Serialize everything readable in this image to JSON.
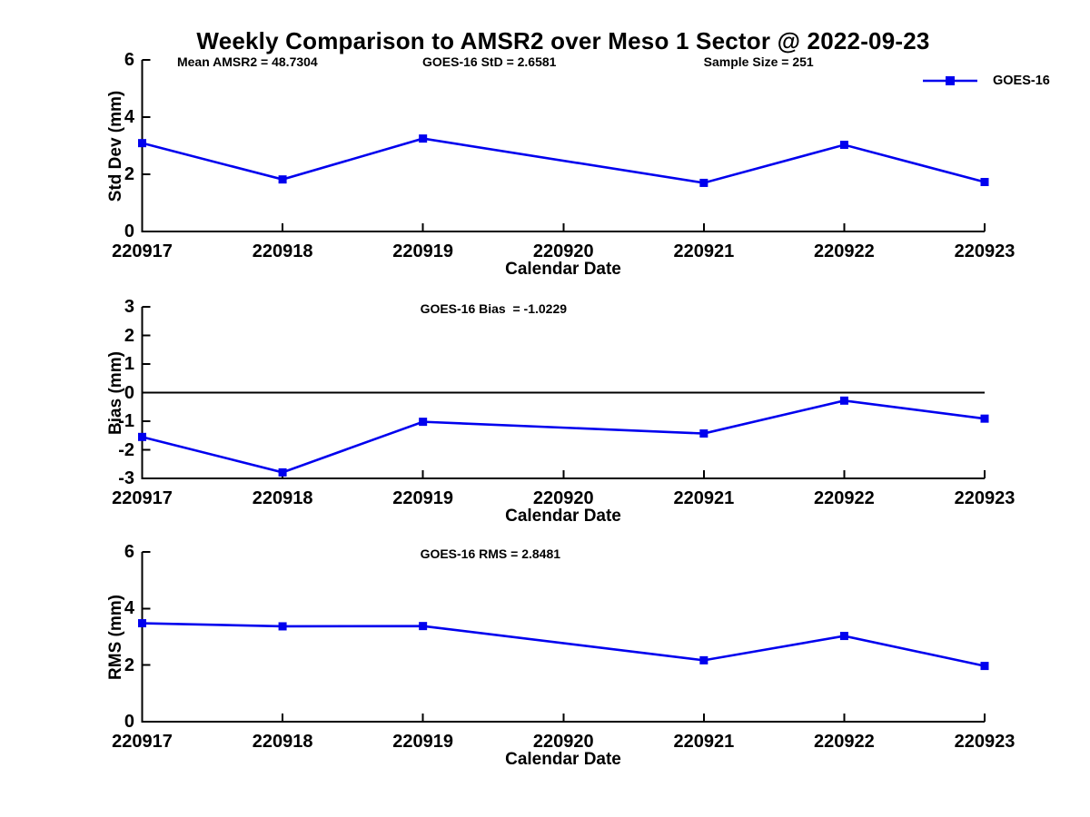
{
  "title": "Weekly Comparison to AMSR2 over Meso 1 Sector @ 2022-09-23",
  "legend": {
    "series_label": "GOES-16",
    "line_color": "#0000EE"
  },
  "colors": {
    "series_blue": "#0000EE",
    "axis_black": "#000000",
    "background": "#ffffff"
  },
  "chart_data": [
    {
      "type": "line",
      "id": "std-dev",
      "xlabel": "Calendar Date",
      "ylabel": "Std Dev (mm)",
      "x_categories": [
        "220917",
        "220918",
        "220919",
        "220920",
        "220921",
        "220922",
        "220923"
      ],
      "ylim": [
        0,
        6
      ],
      "yticks": [
        0,
        2,
        4,
        6
      ],
      "grid": false,
      "zero_line": false,
      "annotations": [
        "Mean AMSR2 = 48.7304",
        "GOES-16 StD = 2.6581",
        "Sample Size = 251"
      ],
      "series": [
        {
          "name": "GOES-16",
          "color": "#0000EE",
          "marker": "square",
          "values": [
            3.09,
            1.82,
            3.25,
            null,
            1.7,
            3.03,
            1.73
          ]
        }
      ]
    },
    {
      "type": "line",
      "id": "bias",
      "xlabel": "Calendar Date",
      "ylabel": "Bias (mm)",
      "x_categories": [
        "220917",
        "220918",
        "220919",
        "220920",
        "220921",
        "220922",
        "220923"
      ],
      "ylim": [
        -3,
        3
      ],
      "yticks": [
        -3,
        -2,
        -1,
        0,
        1,
        2,
        3
      ],
      "grid": false,
      "zero_line": true,
      "annotations": [
        "GOES-16 Bias  = -1.0229"
      ],
      "series": [
        {
          "name": "GOES-16",
          "color": "#0000EE",
          "marker": "square",
          "values": [
            -1.55,
            -2.79,
            -1.02,
            null,
            -1.43,
            -0.28,
            -0.91
          ]
        }
      ]
    },
    {
      "type": "line",
      "id": "rms",
      "xlabel": "Calendar Date",
      "ylabel": "RMS (mm)",
      "x_categories": [
        "220917",
        "220918",
        "220919",
        "220920",
        "220921",
        "220922",
        "220923"
      ],
      "ylim": [
        0,
        6
      ],
      "yticks": [
        0,
        2,
        4,
        6
      ],
      "grid": false,
      "zero_line": false,
      "annotations": [
        "GOES-16 RMS = 2.8481"
      ],
      "series": [
        {
          "name": "GOES-16",
          "color": "#0000EE",
          "marker": "square",
          "values": [
            3.48,
            3.37,
            3.38,
            null,
            2.17,
            3.03,
            1.97
          ]
        }
      ]
    }
  ]
}
